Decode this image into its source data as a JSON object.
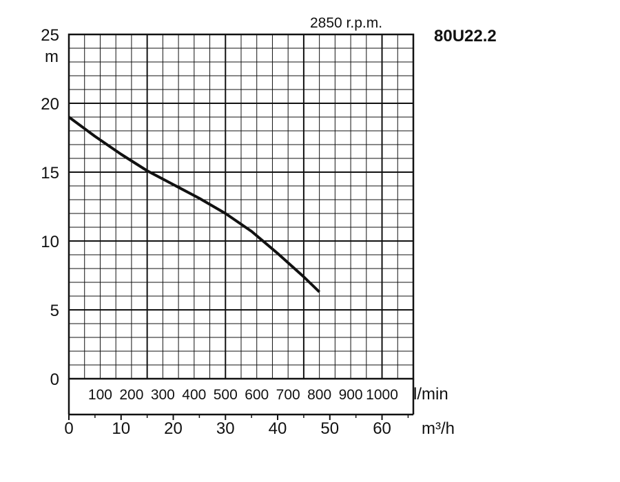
{
  "chart_data": {
    "type": "line",
    "title": "80U22.2",
    "subtitle": "2850 r.p.m.",
    "ylabel": "m",
    "ylim": [
      0,
      25
    ],
    "y_ticks": [
      "0",
      "5",
      "10",
      "15",
      "20",
      "25"
    ],
    "x_primary": {
      "unit": "l/min",
      "ticks": [
        "100",
        "200",
        "300",
        "400",
        "500",
        "600",
        "700",
        "800",
        "900",
        "1000"
      ]
    },
    "x_secondary": {
      "unit": "m³/h",
      "ticks": [
        "0",
        "10",
        "20",
        "30",
        "40",
        "50",
        "60"
      ],
      "xlim": [
        0,
        66
      ]
    },
    "grid": true,
    "series": [
      {
        "x": [
          0,
          5,
          10,
          15,
          20,
          25,
          30,
          35,
          40,
          45,
          48
        ],
        "y": [
          19.0,
          17.6,
          16.3,
          15.1,
          14.1,
          13.1,
          12.0,
          10.7,
          9.1,
          7.4,
          6.3
        ]
      }
    ]
  }
}
